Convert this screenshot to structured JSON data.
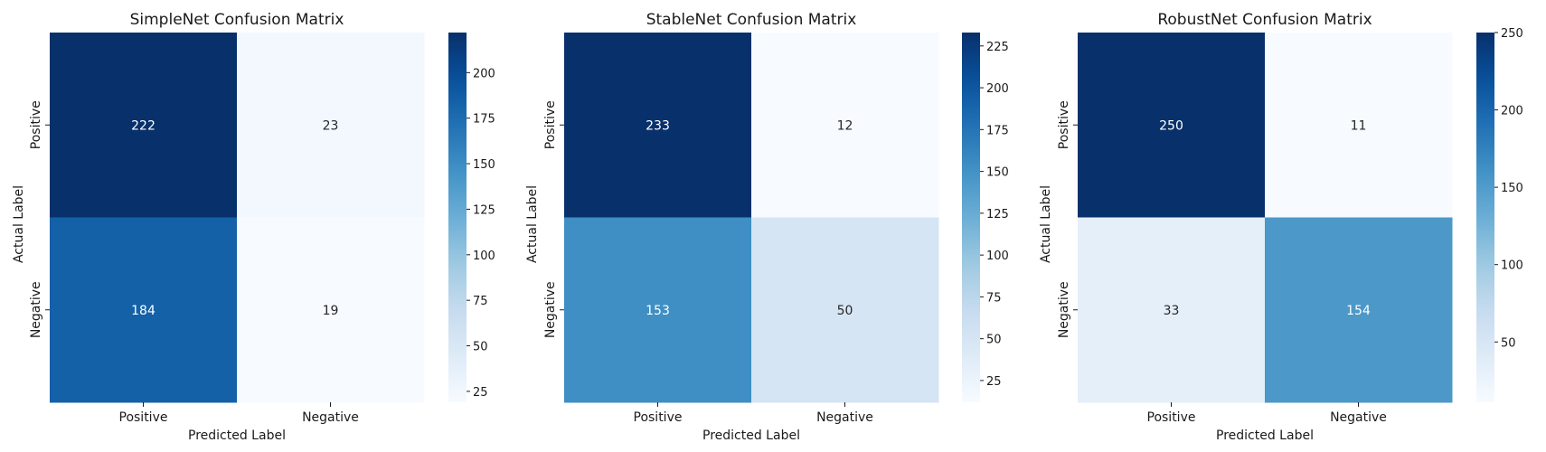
{
  "chart_data": [
    {
      "type": "heatmap",
      "title": "SimpleNet Confusion Matrix",
      "xlabel": "Predicted Label",
      "ylabel": "Actual Label",
      "x_categories": [
        "Positive",
        "Negative"
      ],
      "y_categories": [
        "Positive",
        "Negative"
      ],
      "values": [
        [
          222,
          23
        ],
        [
          184,
          19
        ]
      ],
      "colormap": "Blues",
      "colorbar": {
        "range": [
          19,
          222
        ],
        "ticks": [
          25,
          50,
          75,
          100,
          125,
          150,
          175,
          200
        ]
      }
    },
    {
      "type": "heatmap",
      "title": "StableNet Confusion Matrix",
      "xlabel": "Predicted Label",
      "ylabel": "Actual Label",
      "x_categories": [
        "Positive",
        "Negative"
      ],
      "y_categories": [
        "Positive",
        "Negative"
      ],
      "values": [
        [
          233,
          12
        ],
        [
          153,
          50
        ]
      ],
      "colormap": "Blues",
      "colorbar": {
        "range": [
          12,
          233
        ],
        "ticks": [
          25,
          50,
          75,
          100,
          125,
          150,
          175,
          200,
          225
        ]
      }
    },
    {
      "type": "heatmap",
      "title": "RobustNet Confusion Matrix",
      "xlabel": "Predicted Label",
      "ylabel": "Actual Label",
      "x_categories": [
        "Positive",
        "Negative"
      ],
      "y_categories": [
        "Positive",
        "Negative"
      ],
      "values": [
        [
          250,
          11
        ],
        [
          33,
          154
        ]
      ],
      "colormap": "Blues",
      "colorbar": {
        "range": [
          11,
          250
        ],
        "ticks": [
          50,
          100,
          150,
          200,
          250
        ]
      }
    }
  ]
}
